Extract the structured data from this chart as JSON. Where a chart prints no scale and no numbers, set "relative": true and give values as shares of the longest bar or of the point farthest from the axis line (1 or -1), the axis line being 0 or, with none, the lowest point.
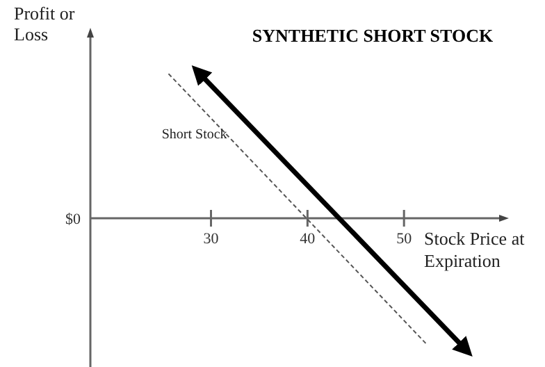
{
  "chart_data": {
    "type": "line",
    "title": "SYNTHETIC SHORT STOCK",
    "xlabel": "Stock Price at Expiration",
    "ylabel": "Profit or Loss",
    "relative": true,
    "xlim": [
      17.5,
      60
    ],
    "xticks": [
      30,
      40,
      50
    ],
    "legend": false,
    "grid": false,
    "annotations": [
      "$0"
    ],
    "series": [
      {
        "name": "Short Stock",
        "color": "#555555",
        "line_style": "dashed",
        "x": [
          25.6,
          52.3
        ],
        "values": [
          0.99,
          -0.86
        ]
      },
      {
        "color": "#000000",
        "line_style": "solid",
        "x": [
          28.7,
          56.4
        ],
        "values": [
          1,
          -0.9
        ]
      }
    ]
  }
}
